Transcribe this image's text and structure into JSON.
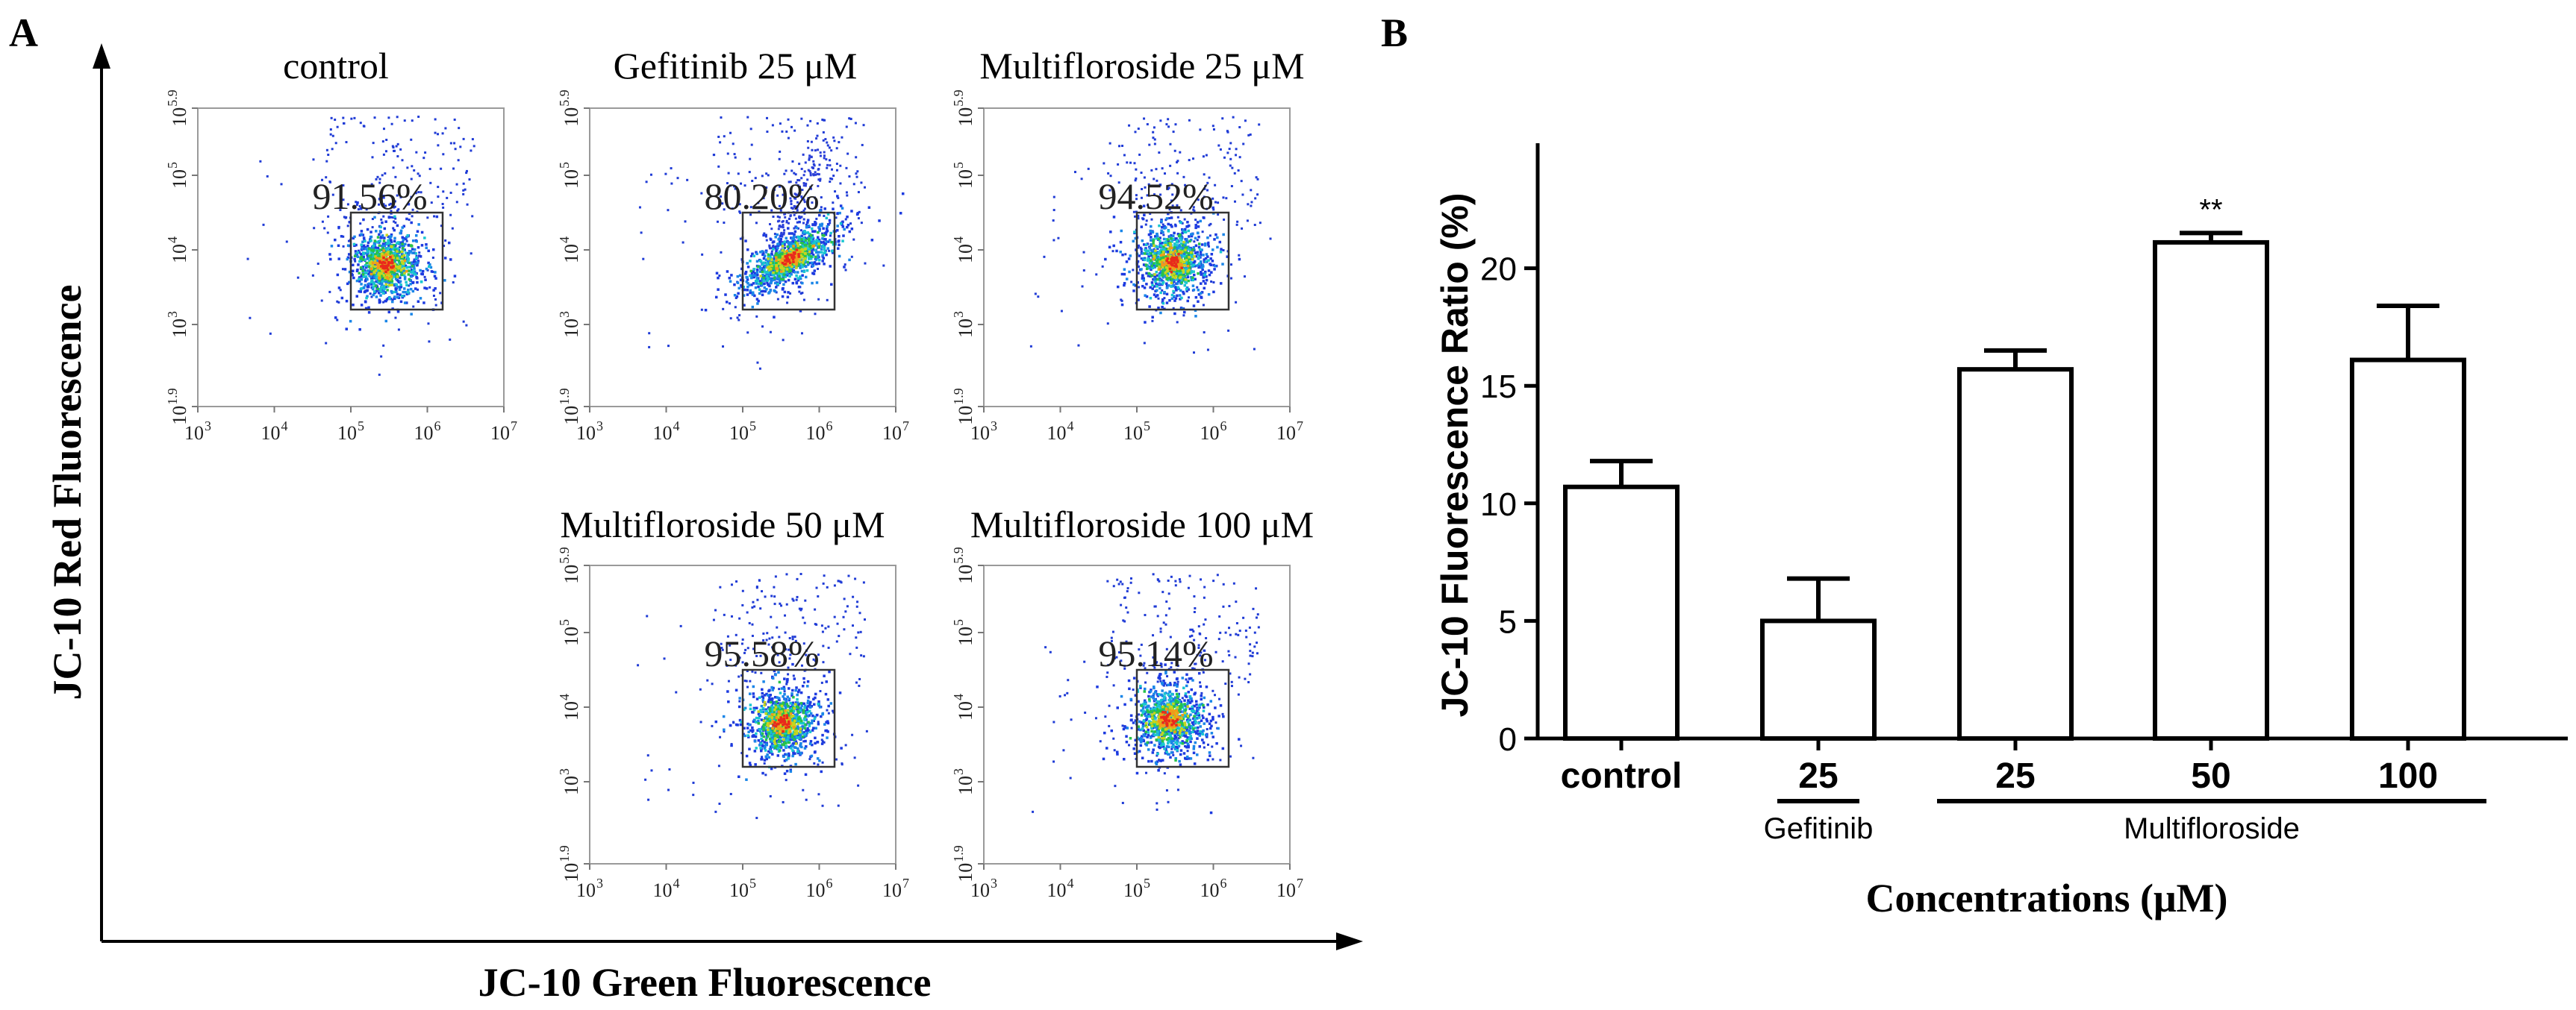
{
  "panel_a": {
    "label": "A",
    "y_axis_label": "JC-10 Red Fluorescence",
    "x_axis_label": "JC-10 Green Fluorescence",
    "x_ticks": [
      {
        "base": "10",
        "exp": "3"
      },
      {
        "base": "10",
        "exp": "4"
      },
      {
        "base": "10",
        "exp": "5"
      },
      {
        "base": "10",
        "exp": "6"
      },
      {
        "base": "10",
        "exp": "7"
      }
    ],
    "y_ticks": [
      {
        "base": "10",
        "exp": "1.9"
      },
      {
        "base": "10",
        "exp": "3"
      },
      {
        "base": "10",
        "exp": "4"
      },
      {
        "base": "10",
        "exp": "5"
      },
      {
        "base": "10",
        "exp": "5.9"
      }
    ],
    "plots": [
      {
        "title": "control",
        "percent": "91.56%",
        "gate": {
          "x1": 5.0,
          "x2": 6.2,
          "y1": 3.2,
          "y2": 4.5
        },
        "cluster": {
          "x": 5.45,
          "y": 3.82
        }
      },
      {
        "title": "Gefitinib  25 μM",
        "percent": "80.20%",
        "gate": {
          "x1": 5.0,
          "x2": 6.2,
          "y1": 3.2,
          "y2": 4.5
        },
        "cluster": {
          "x": 5.6,
          "y": 3.9
        }
      },
      {
        "title": "Multifloroside  25 μM",
        "percent": "94.52%",
        "gate": {
          "x1": 5.0,
          "x2": 6.2,
          "y1": 3.2,
          "y2": 4.5
        },
        "cluster": {
          "x": 5.45,
          "y": 3.85
        }
      },
      {
        "title": "Multifloroside  50 μM",
        "percent": "95.58%",
        "gate": {
          "x1": 5.0,
          "x2": 6.2,
          "y1": 3.2,
          "y2": 4.5
        },
        "cluster": {
          "x": 5.5,
          "y": 3.8
        }
      },
      {
        "title": "Multifloroside  100 μM",
        "percent": "95.14%",
        "gate": {
          "x1": 5.0,
          "x2": 6.2,
          "y1": 3.2,
          "y2": 4.5
        },
        "cluster": {
          "x": 5.4,
          "y": 3.85
        }
      }
    ],
    "axis_range": {
      "x": [
        3,
        7
      ],
      "y": [
        1.9,
        5.9
      ]
    }
  },
  "chart_data": {
    "type": "bar",
    "panel_label": "B",
    "categories": [
      "control",
      "25",
      "25",
      "50",
      "100"
    ],
    "values": [
      10.7,
      5.0,
      15.7,
      21.1,
      16.1
    ],
    "errors": [
      1.1,
      1.8,
      0.8,
      0.4,
      2.3
    ],
    "annotations": [
      "",
      "",
      "",
      "**",
      ""
    ],
    "ylabel": "JC-10 Fluorescence Ratio (%)",
    "xlabel": "Concentrations (μM)",
    "ylim": [
      0,
      25
    ],
    "yticks": [
      0,
      5,
      10,
      15,
      20
    ],
    "groups": [
      {
        "label": "Gefitinib",
        "from": 1,
        "to": 1
      },
      {
        "label": "Multifloroside",
        "from": 2,
        "to": 4
      }
    ],
    "bar_color": "#ffffff",
    "edge_color": "#000000"
  }
}
